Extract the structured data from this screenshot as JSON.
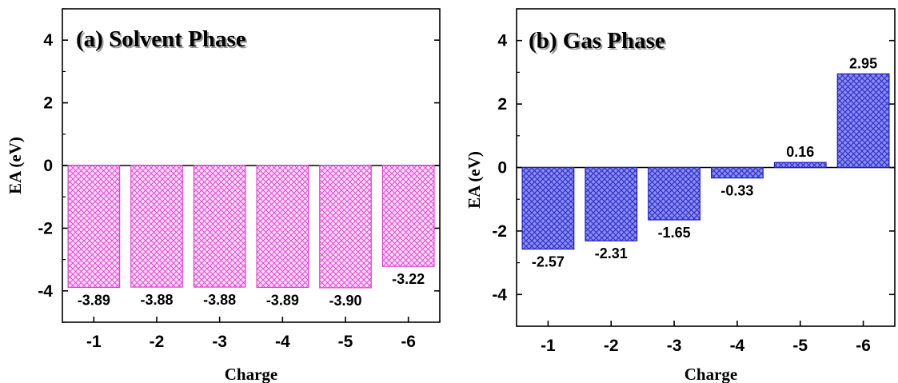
{
  "chart_data": [
    {
      "type": "bar",
      "title": "(a) Solvent Phase",
      "xlabel": "Charge",
      "ylabel": "EA (eV)",
      "categories": [
        "-1",
        "-2",
        "-3",
        "-4",
        "-5",
        "-6"
      ],
      "values": [
        -3.89,
        -3.88,
        -3.88,
        -3.89,
        -3.9,
        -3.22
      ],
      "value_labels": [
        "-3.89",
        "-3.88",
        "-3.88",
        "-3.89",
        "-3.90",
        "-3.22"
      ],
      "ylim": [
        -5,
        5
      ],
      "yticks": [
        "-4",
        "-2",
        "0",
        "2",
        "4"
      ],
      "grid": false,
      "color": "#ee44dd",
      "pattern": "crosshatch"
    },
    {
      "type": "bar",
      "title": "(b) Gas Phase",
      "xlabel": "Charge",
      "ylabel": "EA (eV)",
      "categories": [
        "-1",
        "-2",
        "-3",
        "-4",
        "-5",
        "-6"
      ],
      "values": [
        -2.57,
        -2.31,
        -1.65,
        -0.33,
        0.16,
        2.95
      ],
      "value_labels": [
        "-2.57",
        "-2.31",
        "-1.65",
        "-0.33",
        "0.16",
        "2.95"
      ],
      "ylim": [
        -5,
        5
      ],
      "yticks": [
        "-4",
        "-2",
        "0",
        "2",
        "4"
      ],
      "grid": false,
      "color": "#3333dd",
      "pattern": "crosshatch"
    }
  ]
}
